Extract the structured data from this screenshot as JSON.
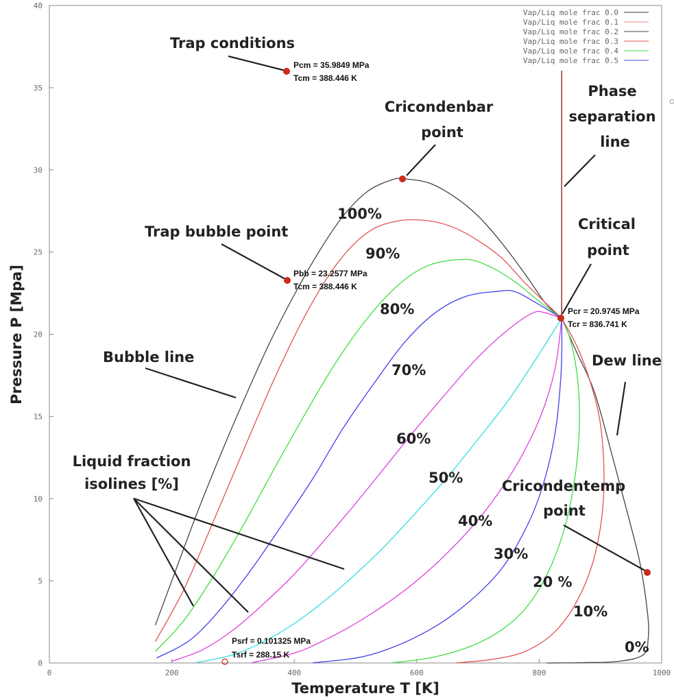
{
  "chart_data": {
    "type": "line",
    "xlabel": "Temperature T [K]",
    "ylabel": "Pressure P [Mpa]",
    "xlim": [
      0,
      1000
    ],
    "ylim": [
      0,
      40
    ],
    "xticks": [
      "0",
      "200",
      "400",
      "600",
      "800",
      "1000"
    ],
    "yticks": [
      "0",
      "5",
      "10",
      "15",
      "20",
      "25",
      "30",
      "35",
      "40"
    ],
    "legend": {
      "placement": "top-right",
      "entries": [
        {
          "label": "Vap/Liq mole frac 0.0",
          "color": "#333333"
        },
        {
          "label": "Vap/Liq mole frac 0.1",
          "color": "#f28080"
        },
        {
          "label": "Vap/Liq mole frac 0.2",
          "color": "#444444"
        },
        {
          "label": "Vap/Liq mole frac 0.3",
          "color": "#e05050"
        },
        {
          "label": "Vap/Liq mole frac 0.4",
          "color": "#40dd40"
        },
        {
          "label": "Vap/Liq mole frac 0.5",
          "color": "#4040ee"
        }
      ]
    },
    "envelope": {
      "bubble": [
        [
          173,
          2.3
        ],
        [
          200,
          5
        ],
        [
          240,
          9
        ],
        [
          280,
          12.7
        ],
        [
          320,
          16.2
        ],
        [
          360,
          19.5
        ],
        [
          400,
          22.4
        ],
        [
          440,
          25
        ],
        [
          480,
          27.2
        ],
        [
          520,
          28.7
        ],
        [
          560,
          29.4
        ],
        [
          580,
          29.45
        ],
        [
          620,
          29.2
        ],
        [
          660,
          28.4
        ],
        [
          700,
          27.2
        ],
        [
          740,
          25.5
        ],
        [
          780,
          23.5
        ],
        [
          810,
          21.9
        ],
        [
          836.7,
          20.97
        ]
      ],
      "dew": [
        [
          836.7,
          20.97
        ],
        [
          860,
          19
        ],
        [
          890,
          16.5
        ],
        [
          920,
          12.5
        ],
        [
          945,
          9
        ],
        [
          965,
          6
        ],
        [
          977,
          3
        ],
        [
          978,
          1.5
        ],
        [
          970,
          0.5
        ],
        [
          930,
          0.1
        ],
        [
          870,
          0.02
        ],
        [
          813,
          0
        ]
      ]
    },
    "isolines": [
      {
        "label": "90%",
        "color": "#e05050",
        "points": [
          [
            173,
            1.3
          ],
          [
            220,
            4.5
          ],
          [
            270,
            8.8
          ],
          [
            320,
            13.2
          ],
          [
            370,
            17.5
          ],
          [
            420,
            21.3
          ],
          [
            470,
            24.3
          ],
          [
            520,
            26.2
          ],
          [
            570,
            26.9
          ],
          [
            620,
            26.9
          ],
          [
            660,
            26.5
          ],
          [
            700,
            25.7
          ],
          [
            740,
            24.6
          ],
          [
            780,
            23
          ],
          [
            836.7,
            20.97
          ]
        ]
      },
      {
        "label": "80%",
        "color": "#40dd40",
        "points": [
          [
            173,
            0.7
          ],
          [
            220,
            2.6
          ],
          [
            270,
            5.4
          ],
          [
            320,
            8.6
          ],
          [
            370,
            12
          ],
          [
            420,
            15.3
          ],
          [
            470,
            18.4
          ],
          [
            520,
            21
          ],
          [
            570,
            23
          ],
          [
            620,
            24.2
          ],
          [
            680,
            24.55
          ],
          [
            720,
            24.1
          ],
          [
            760,
            23.2
          ],
          [
            800,
            22
          ],
          [
            836.7,
            20.97
          ]
        ]
      },
      {
        "label": "70%",
        "color": "#4040ee",
        "points": [
          [
            175,
            0.3
          ],
          [
            230,
            1.4
          ],
          [
            280,
            3.3
          ],
          [
            330,
            5.7
          ],
          [
            380,
            8.4
          ],
          [
            430,
            11.2
          ],
          [
            480,
            14.3
          ],
          [
            530,
            17
          ],
          [
            580,
            19.5
          ],
          [
            630,
            21.3
          ],
          [
            680,
            22.3
          ],
          [
            730,
            22.6
          ],
          [
            760,
            22.6
          ],
          [
            800,
            21.8
          ],
          [
            836.7,
            20.97
          ]
        ]
      },
      {
        "label": "60%",
        "color": "#dd40dd",
        "points": [
          [
            200,
            0.1
          ],
          [
            250,
            0.8
          ],
          [
            300,
            2
          ],
          [
            350,
            3.6
          ],
          [
            400,
            5.4
          ],
          [
            450,
            7.5
          ],
          [
            500,
            9.7
          ],
          [
            550,
            12
          ],
          [
            600,
            14.3
          ],
          [
            650,
            16.5
          ],
          [
            700,
            18.6
          ],
          [
            750,
            20.3
          ],
          [
            790,
            21.3
          ],
          [
            810,
            21.3
          ],
          [
            836.7,
            20.97
          ]
        ]
      },
      {
        "label": "50%",
        "color": "#30dddd",
        "points": [
          [
            240,
            0.02
          ],
          [
            300,
            0.5
          ],
          [
            350,
            1.3
          ],
          [
            400,
            2.4
          ],
          [
            450,
            3.8
          ],
          [
            500,
            5.4
          ],
          [
            550,
            7.2
          ],
          [
            600,
            9.2
          ],
          [
            650,
            11.3
          ],
          [
            700,
            13.6
          ],
          [
            750,
            16
          ],
          [
            800,
            18.8
          ],
          [
            836.7,
            20.97
          ]
        ]
      },
      {
        "label": "40%",
        "color": "#dd40dd",
        "points": [
          [
            330,
            0.01
          ],
          [
            400,
            0.6
          ],
          [
            450,
            1.4
          ],
          [
            500,
            2.4
          ],
          [
            550,
            3.6
          ],
          [
            600,
            5
          ],
          [
            650,
            6.7
          ],
          [
            700,
            8.7
          ],
          [
            740,
            10.7
          ],
          [
            770,
            12.5
          ],
          [
            800,
            14.8
          ],
          [
            820,
            17
          ],
          [
            830,
            18.8
          ],
          [
            836.7,
            20.97
          ]
        ]
      },
      {
        "label": "30%",
        "color": "#4040ee",
        "points": [
          [
            430,
            0.01
          ],
          [
            500,
            0.3
          ],
          [
            550,
            0.8
          ],
          [
            600,
            1.6
          ],
          [
            650,
            2.7
          ],
          [
            700,
            4.2
          ],
          [
            740,
            5.8
          ],
          [
            770,
            7.6
          ],
          [
            795,
            9.6
          ],
          [
            815,
            12
          ],
          [
            828,
            14.5
          ],
          [
            835,
            17.2
          ],
          [
            837,
            19.2
          ],
          [
            836.7,
            20.97
          ]
        ]
      },
      {
        "label": "20 %",
        "color": "#40dd40",
        "points": [
          [
            560,
            0.01
          ],
          [
            620,
            0.3
          ],
          [
            680,
            0.9
          ],
          [
            730,
            1.8
          ],
          [
            770,
            3
          ],
          [
            800,
            4.5
          ],
          [
            825,
            6.4
          ],
          [
            845,
            8.7
          ],
          [
            858,
            11.2
          ],
          [
            865,
            13.8
          ],
          [
            865,
            16.3
          ],
          [
            858,
            18.5
          ],
          [
            848,
            20
          ],
          [
            836.7,
            20.97
          ]
        ]
      },
      {
        "label": "10%",
        "color": "#e05050",
        "points": [
          [
            665,
            0.01
          ],
          [
            720,
            0.2
          ],
          [
            770,
            0.6
          ],
          [
            810,
            1.4
          ],
          [
            840,
            2.5
          ],
          [
            865,
            4
          ],
          [
            885,
            5.8
          ],
          [
            898,
            7.8
          ],
          [
            905,
            10
          ],
          [
            905,
            12.5
          ],
          [
            898,
            15
          ],
          [
            880,
            17.5
          ],
          [
            860,
            19.4
          ],
          [
            836.7,
            20.97
          ]
        ]
      }
    ],
    "phase_separation_line": {
      "color": "#993333",
      "x": 836.7,
      "y_from": 20.97,
      "y_to": 36
    },
    "points": [
      {
        "name": "trap-conditions",
        "x": 388.446,
        "y": 35.9849,
        "line1": "Pcm = 35.9849 MPa",
        "line2": "Tcm = 388.446 K"
      },
      {
        "name": "trap-bubble-point",
        "x": 388.446,
        "y": 23.2577,
        "line1": "Pbb = 23.2577 MPa",
        "line2": "Tcm = 388.446 K"
      },
      {
        "name": "critical-point",
        "x": 836.741,
        "y": 20.9745,
        "line1": "Pcr = 20.9745 MPa",
        "line2": "Tcr = 836.741 K"
      },
      {
        "name": "cricondenbar-point",
        "x": 580,
        "y": 29.45,
        "line1": "",
        "line2": ""
      },
      {
        "name": "cricondentemp-point",
        "x": 978,
        "y": 5.5,
        "line1": "",
        "line2": ""
      },
      {
        "name": "standard-conditions",
        "x": 288.15,
        "y": 0.101325,
        "line1": "Psrf = 0.101325 MPa",
        "line2": "Tsrf = 288.15 K",
        "hollow": true
      }
    ],
    "annotations": {
      "trap_conditions": "Trap conditions",
      "cricondenbar_1": "Cricondenbar",
      "cricondenbar_2": "point",
      "phase_sep_1": "Phase",
      "phase_sep_2": "separation",
      "phase_sep_3": "line",
      "critical_1": "Critical",
      "critical_2": "point",
      "trap_bubble": "Trap bubble point",
      "bubble_line": "Bubble line",
      "dew_line": "Dew line",
      "liquid_frac_1": "Liquid fraction",
      "liquid_frac_2": "isolines [%]",
      "cricondentemp_1": "Cricondentemp",
      "cricondentemp_2": "point"
    },
    "percent_labels": [
      "100%",
      "90%",
      "80%",
      "70%",
      "60%",
      "50%",
      "40%",
      "30%",
      "20 %",
      "10%",
      "0%"
    ]
  }
}
